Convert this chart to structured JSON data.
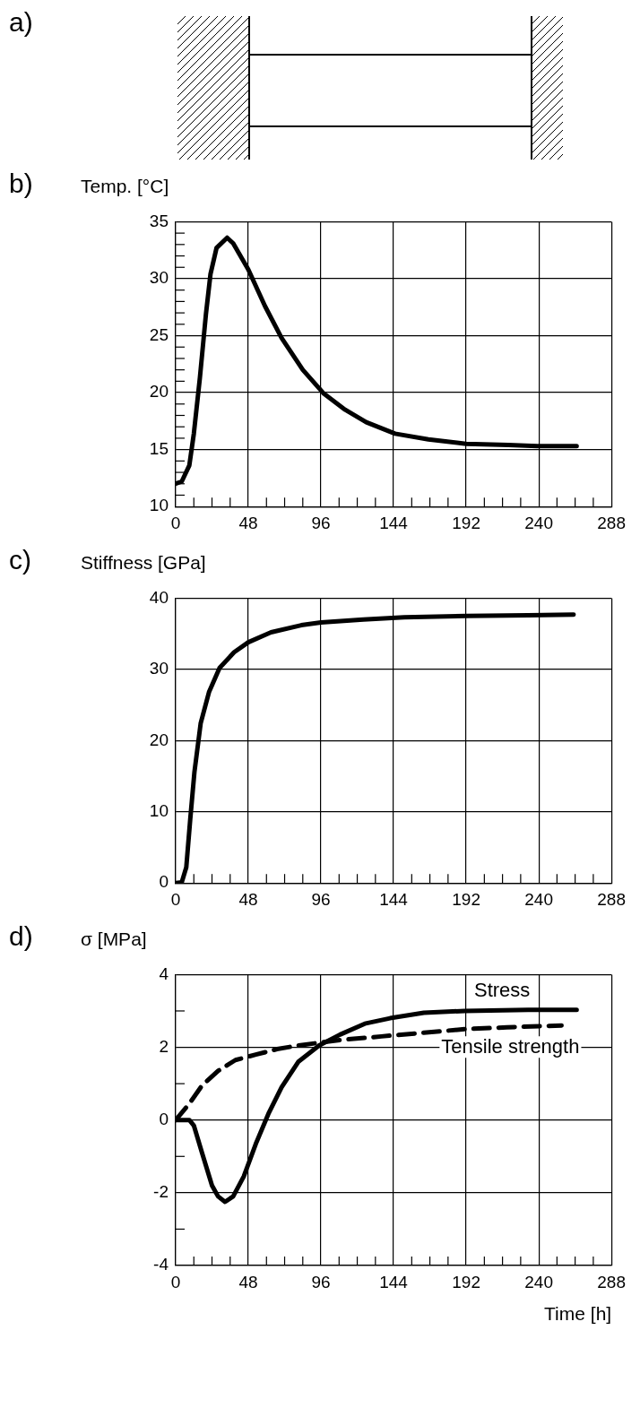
{
  "chart_data": [
    {
      "type": "other",
      "title": "a)"
    },
    {
      "type": "line",
      "title": "b)",
      "ylabel": "Temp. [°C]",
      "color": "#000000",
      "line_style": "solid",
      "marker": "none",
      "grid": true,
      "x": [
        0,
        4,
        9,
        12,
        16,
        20,
        23,
        27,
        34,
        38,
        48,
        59,
        70,
        84,
        98,
        112,
        126,
        145,
        167,
        192,
        220,
        239,
        265
      ],
      "values": [
        12,
        12.2,
        13.6,
        16.4,
        21.3,
        26.9,
        30.4,
        32.7,
        33.6,
        33.1,
        30.8,
        27.6,
        24.8,
        22,
        19.9,
        18.5,
        17.4,
        16.4,
        15.9,
        15.5,
        15.4,
        15.3,
        15.3
      ],
      "xlim": [
        0,
        288
      ],
      "xticks": [
        0,
        {
          "value": 12,
          "label": null
        },
        {
          "value": 24,
          "label": null
        },
        {
          "value": 36,
          "label": null
        },
        48,
        {
          "value": 60,
          "label": null
        },
        {
          "value": 72,
          "label": null
        },
        {
          "value": 84,
          "label": null
        },
        96,
        {
          "value": 108,
          "label": null
        },
        {
          "value": 120,
          "label": null
        },
        {
          "value": 132,
          "label": null
        },
        144,
        {
          "value": 156,
          "label": null
        },
        {
          "value": 168,
          "label": null
        },
        {
          "value": 180,
          "label": null
        },
        192,
        {
          "value": 204,
          "label": null
        },
        {
          "value": 216,
          "label": null
        },
        {
          "value": 228,
          "label": null
        },
        240,
        {
          "value": 252,
          "label": null
        },
        {
          "value": 264,
          "label": null
        },
        {
          "value": 276,
          "label": null
        },
        288
      ],
      "ylim": [
        10,
        35
      ],
      "yticks": [
        10,
        {
          "value": 11,
          "label": null
        },
        {
          "value": 12,
          "label": null
        },
        {
          "value": 13,
          "label": null
        },
        {
          "value": 14,
          "label": null
        },
        15,
        {
          "value": 16,
          "label": null
        },
        {
          "value": 17,
          "label": null
        },
        {
          "value": 18,
          "label": null
        },
        {
          "value": 19,
          "label": null
        },
        20,
        {
          "value": 21,
          "label": null
        },
        {
          "value": 22,
          "label": null
        },
        {
          "value": 23,
          "label": null
        },
        {
          "value": 24,
          "label": null
        },
        25,
        {
          "value": 26,
          "label": null
        },
        {
          "value": 27,
          "label": null
        },
        {
          "value": 28,
          "label": null
        },
        {
          "value": 29,
          "label": null
        },
        30,
        {
          "value": 31,
          "label": null
        },
        {
          "value": 32,
          "label": null
        },
        {
          "value": 33,
          "label": null
        },
        {
          "value": 34,
          "label": null
        },
        35
      ]
    },
    {
      "type": "line",
      "title": "c)",
      "ylabel": "Stiffness [GPa]",
      "color": "#000000",
      "line_style": "solid",
      "marker": "none",
      "grid": true,
      "x": [
        0,
        4,
        7,
        9.6,
        12.4,
        16.5,
        22,
        29,
        38.6,
        48,
        63,
        83,
        96,
        124,
        151,
        192,
        233,
        263
      ],
      "values": [
        0,
        0.1,
        2.2,
        8.9,
        15.6,
        22.4,
        26.8,
        30.2,
        32.4,
        33.8,
        35.2,
        36.2,
        36.6,
        37,
        37.3,
        37.5,
        37.6,
        37.7
      ],
      "xlim": [
        0,
        288
      ],
      "xticks": [
        0,
        {
          "value": 12,
          "label": null
        },
        {
          "value": 24,
          "label": null
        },
        {
          "value": 36,
          "label": null
        },
        48,
        {
          "value": 60,
          "label": null
        },
        {
          "value": 72,
          "label": null
        },
        {
          "value": 84,
          "label": null
        },
        96,
        {
          "value": 108,
          "label": null
        },
        {
          "value": 120,
          "label": null
        },
        {
          "value": 132,
          "label": null
        },
        144,
        {
          "value": 156,
          "label": null
        },
        {
          "value": 168,
          "label": null
        },
        {
          "value": 180,
          "label": null
        },
        192,
        {
          "value": 204,
          "label": null
        },
        {
          "value": 216,
          "label": null
        },
        {
          "value": 228,
          "label": null
        },
        240,
        {
          "value": 252,
          "label": null
        },
        {
          "value": 264,
          "label": null
        },
        {
          "value": 276,
          "label": null
        },
        288
      ],
      "ylim": [
        0,
        40
      ],
      "yticks": [
        0,
        10,
        20,
        30,
        40
      ]
    },
    {
      "type": "line",
      "title": "d)",
      "ylabel": "σ [MPa]",
      "xlabel": "Time [h]",
      "marker": "none",
      "grid": true,
      "series": [
        {
          "name": "Stress",
          "color": "#000000",
          "line_style": "solid",
          "x": [
            0,
            9,
            12,
            17.4,
            24,
            28,
            32.6,
            38,
            45,
            53,
            61.6,
            70,
            81,
            94.8,
            108.6,
            125,
            141.7,
            164,
            191,
            233,
            265
          ],
          "values": [
            0,
            0,
            -0.15,
            -0.9,
            -1.8,
            -2.1,
            -2.25,
            -2.1,
            -1.55,
            -0.65,
            0.2,
            0.9,
            1.6,
            2.05,
            2.35,
            2.65,
            2.8,
            2.95,
            3,
            3.03,
            3.03
          ]
        },
        {
          "name": "Tensile strength",
          "color": "#000000",
          "line_style": "dashed",
          "x": [
            0,
            9,
            17.4,
            28,
            39.5,
            53,
            67,
            81,
            108.6,
            136,
            164,
            191,
            219,
            255
          ],
          "values": [
            0,
            0.45,
            0.95,
            1.35,
            1.65,
            1.8,
            1.95,
            2.05,
            2.2,
            2.3,
            2.4,
            2.5,
            2.55,
            2.6
          ]
        }
      ],
      "xlim": [
        0,
        288
      ],
      "xticks": [
        0,
        {
          "value": 12,
          "label": null
        },
        {
          "value": 24,
          "label": null
        },
        {
          "value": 36,
          "label": null
        },
        48,
        {
          "value": 60,
          "label": null
        },
        {
          "value": 72,
          "label": null
        },
        {
          "value": 84,
          "label": null
        },
        96,
        {
          "value": 108,
          "label": null
        },
        {
          "value": 120,
          "label": null
        },
        {
          "value": 132,
          "label": null
        },
        144,
        {
          "value": 156,
          "label": null
        },
        {
          "value": 168,
          "label": null
        },
        {
          "value": 180,
          "label": null
        },
        192,
        {
          "value": 204,
          "label": null
        },
        {
          "value": 216,
          "label": null
        },
        {
          "value": 228,
          "label": null
        },
        240,
        {
          "value": 252,
          "label": null
        },
        {
          "value": 264,
          "label": null
        },
        {
          "value": 276,
          "label": null
        },
        288
      ],
      "ylim": [
        -4,
        4
      ],
      "yticks": [
        -4,
        {
          "value": -3,
          "label": null
        },
        -2,
        {
          "value": -1,
          "label": null
        },
        0,
        {
          "value": 1,
          "label": null
        },
        2,
        {
          "value": 3,
          "label": null
        },
        4
      ]
    }
  ]
}
